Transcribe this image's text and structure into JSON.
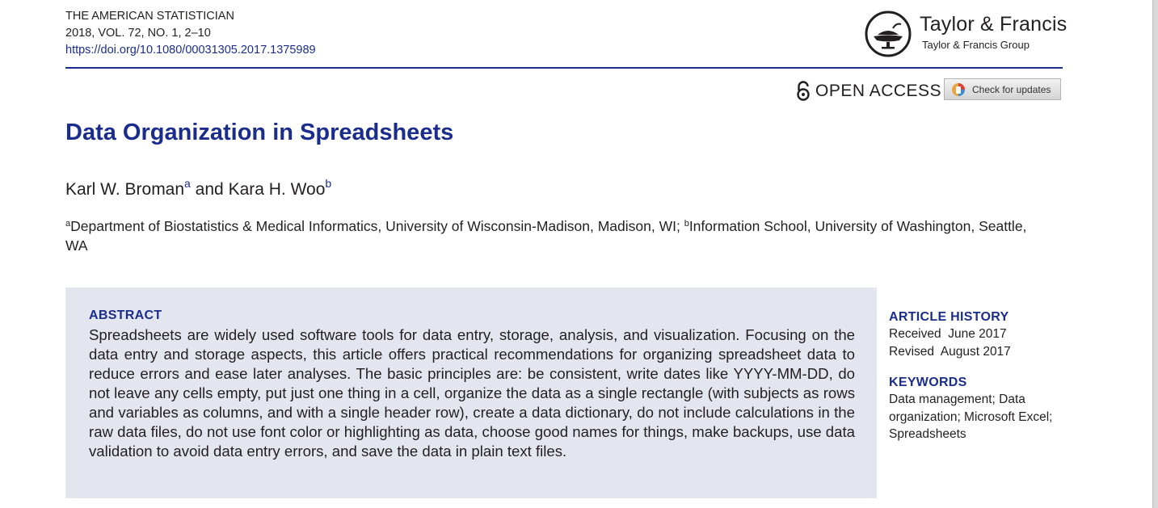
{
  "journal": {
    "name": "THE AMERICAN STATISTICIAN",
    "volume": "2018, VOL. 72, NO. 1, 2–10",
    "doi": "https://doi.org/10.1080/00031305.2017.1375989"
  },
  "publisher": {
    "name": "Taylor & Francis",
    "group": "Taylor & Francis Group"
  },
  "access": {
    "open_access_label": "OPEN ACCESS",
    "check_updates_label": "Check for updates"
  },
  "article": {
    "title": "Data Organization in Spreadsheets",
    "author1": "Karl W. Broman",
    "author1_sup": "a",
    "author_sep": " and ",
    "author2": "Kara H. Woo",
    "author2_sup": "b",
    "affil_a_sup": "a",
    "affil_a": "Department of Biostatistics & Medical Informatics, University of Wisconsin-Madison, Madison, WI; ",
    "affil_b_sup": "b",
    "affil_b": "Information School, University of Washington, Seattle, WA"
  },
  "abstract": {
    "heading": "ABSTRACT",
    "text": "Spreadsheets are widely used software tools for data entry, storage, analysis, and visualization. Focusing on the data entry and storage aspects, this article offers practical recommendations for organizing spreadsheet data to reduce errors and ease later analyses. The basic principles are: be consistent, write dates like YYYY-MM-DD, do not leave any cells empty, put just one thing in a cell, organize the data as a single rectangle (with subjects as rows and variables as columns, and with a single header row), create a data dictionary, do not include calculations in the raw data files, do not use font color or highlighting as data, choose good names for things, make backups, use data validation to avoid data entry errors, and save the data in plain text files."
  },
  "history": {
    "heading": "ARTICLE HISTORY",
    "received": "Received  June 2017",
    "revised": "Revised  August 2017"
  },
  "keywords": {
    "heading": "KEYWORDS",
    "line1": "Data management; Data",
    "line2": "organization; Microsoft Excel;",
    "line3": "Spreadsheets"
  },
  "colors": {
    "accent": "#1b2d8c",
    "abstract_bg": "#e4e6ef",
    "text": "#231f20"
  }
}
